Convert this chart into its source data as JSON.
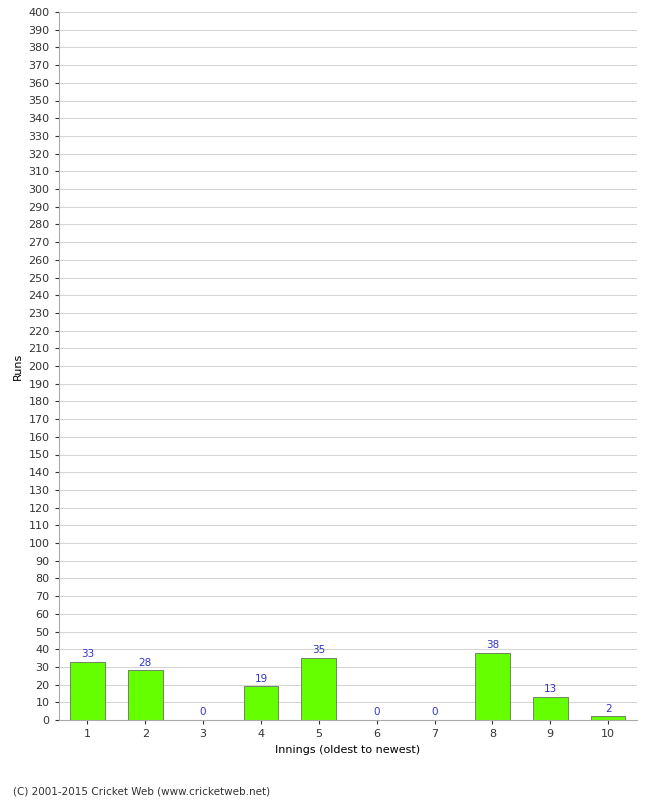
{
  "xlabel": "Innings (oldest to newest)",
  "ylabel": "Runs",
  "categories": [
    "1",
    "2",
    "3",
    "4",
    "5",
    "6",
    "7",
    "8",
    "9",
    "10"
  ],
  "values": [
    33,
    28,
    0,
    19,
    35,
    0,
    0,
    38,
    13,
    2
  ],
  "bar_color": "#66ff00",
  "bar_edge_color": "#555555",
  "label_color": "#3333cc",
  "background_color": "#ffffff",
  "grid_color": "#cccccc",
  "ylim": [
    0,
    400
  ],
  "ytick_step": 10,
  "footer": "(C) 2001-2015 Cricket Web (www.cricketweb.net)",
  "label_fontsize": 7.5,
  "axis_fontsize": 8,
  "footer_fontsize": 7.5,
  "ylabel_fontsize": 8
}
